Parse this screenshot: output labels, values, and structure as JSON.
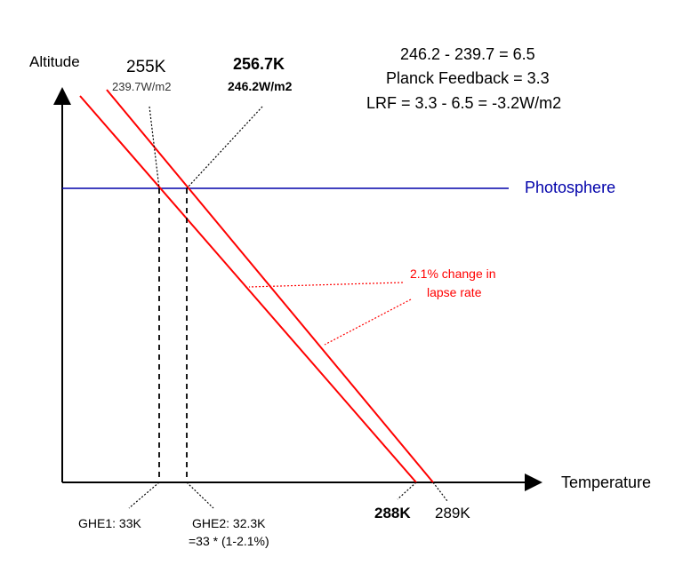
{
  "axes": {
    "y_label": "Altitude",
    "x_label": "Temperature"
  },
  "photosphere": {
    "label": "Photosphere",
    "color": "#0000aa"
  },
  "top_labels": {
    "left_temp": "255K",
    "left_flux": "239.7W/m2",
    "right_temp": "256.7K",
    "right_flux": "246.2W/m2"
  },
  "equations": {
    "line1": "246.2 - 239.7 = 6.5",
    "line2": "Planck Feedback = 3.3",
    "line3": "LRF = 3.3 - 6.5 = -3.2W/m2"
  },
  "lapse_annotation": {
    "line1": "2.1% change in",
    "line2": "lapse rate",
    "color": "#ff0000"
  },
  "bottom_labels": {
    "ghe1": "GHE1: 33K",
    "ghe2_line1": "GHE2: 32.3K",
    "ghe2_line2": "=33 * (1-2.1%)",
    "temp_left": "288K",
    "temp_right": "289K"
  },
  "colors": {
    "lapse_lines": "#ff0000",
    "axes": "#000000"
  }
}
